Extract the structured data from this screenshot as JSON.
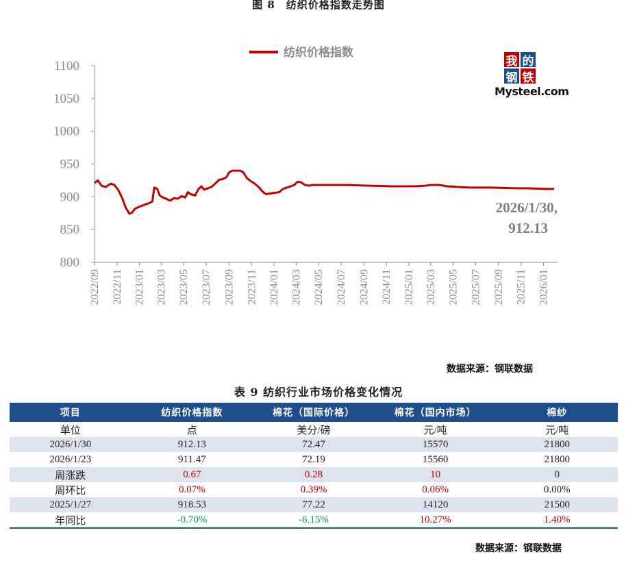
{
  "figure_title": "图 8　纺织价格指数走势图",
  "chart_data": {
    "type": "line",
    "title": "",
    "xlabel": "",
    "ylabel": "",
    "ylim": [
      800,
      1100
    ],
    "y_ticks": [
      "800",
      "850",
      "900",
      "950",
      "1000",
      "1050",
      "1100"
    ],
    "x_ticks": [
      "2022/09",
      "2022/11",
      "2023/01",
      "2023/03",
      "2023/05",
      "2023/07",
      "2023/09",
      "2023/11",
      "2024/01",
      "2024/03",
      "2024/05",
      "2024/07",
      "2024/09",
      "2024/11",
      "2025/01",
      "2025/03",
      "2025/05",
      "2025/07",
      "2025/09",
      "2025/11",
      "2026/01"
    ],
    "legend_position": "top",
    "grid": false,
    "series": [
      {
        "name": "纺织价格指数",
        "color": "#c00000",
        "points": [
          [
            "2022-09-01",
            921
          ],
          [
            "2022-09-10",
            925
          ],
          [
            "2022-09-20",
            917
          ],
          [
            "2022-10-01",
            915
          ],
          [
            "2022-10-15",
            920
          ],
          [
            "2022-10-25",
            918
          ],
          [
            "2022-11-05",
            910
          ],
          [
            "2022-11-15",
            898
          ],
          [
            "2022-11-25",
            883
          ],
          [
            "2022-12-05",
            874
          ],
          [
            "2022-12-12",
            876
          ],
          [
            "2022-12-20",
            882
          ],
          [
            "2023-01-01",
            885
          ],
          [
            "2023-01-10",
            887
          ],
          [
            "2023-01-20",
            889
          ],
          [
            "2023-01-30",
            891
          ],
          [
            "2023-02-05",
            893
          ],
          [
            "2023-02-10",
            914
          ],
          [
            "2023-02-18",
            912
          ],
          [
            "2023-02-25",
            902
          ],
          [
            "2023-03-05",
            899
          ],
          [
            "2023-03-15",
            897
          ],
          [
            "2023-03-25",
            894
          ],
          [
            "2023-04-05",
            898
          ],
          [
            "2023-04-15",
            897
          ],
          [
            "2023-04-25",
            901
          ],
          [
            "2023-05-05",
            899
          ],
          [
            "2023-05-12",
            907
          ],
          [
            "2023-05-20",
            904
          ],
          [
            "2023-06-01",
            902
          ],
          [
            "2023-06-10",
            912
          ],
          [
            "2023-06-18",
            916
          ],
          [
            "2023-06-25",
            911
          ],
          [
            "2023-07-05",
            913
          ],
          [
            "2023-07-15",
            915
          ],
          [
            "2023-07-25",
            920
          ],
          [
            "2023-08-05",
            926
          ],
          [
            "2023-08-15",
            927
          ],
          [
            "2023-08-25",
            930
          ],
          [
            "2023-09-01",
            937
          ],
          [
            "2023-09-10",
            940
          ],
          [
            "2023-09-20",
            940
          ],
          [
            "2023-10-01",
            940
          ],
          [
            "2023-10-10",
            937
          ],
          [
            "2023-10-20",
            928
          ],
          [
            "2023-11-01",
            923
          ],
          [
            "2023-11-10",
            920
          ],
          [
            "2023-11-20",
            915
          ],
          [
            "2023-12-01",
            908
          ],
          [
            "2023-12-10",
            904
          ],
          [
            "2023-12-20",
            905
          ],
          [
            "2024-01-01",
            906
          ],
          [
            "2024-01-15",
            907
          ],
          [
            "2024-01-25",
            912
          ],
          [
            "2024-02-10",
            915
          ],
          [
            "2024-02-25",
            918
          ],
          [
            "2024-03-05",
            923
          ],
          [
            "2024-03-15",
            922
          ],
          [
            "2024-03-25",
            918
          ],
          [
            "2024-04-05",
            917
          ],
          [
            "2024-04-15",
            918
          ],
          [
            "2024-05-15",
            918
          ],
          [
            "2024-06-15",
            918
          ],
          [
            "2024-07-15",
            918
          ],
          [
            "2024-08-15",
            917.5
          ],
          [
            "2024-09-15",
            917
          ],
          [
            "2024-10-15",
            916.5
          ],
          [
            "2024-11-15",
            916
          ],
          [
            "2024-12-15",
            916
          ],
          [
            "2025-01-15",
            916
          ],
          [
            "2025-02-15",
            917
          ],
          [
            "2025-03-01",
            918
          ],
          [
            "2025-03-25",
            918
          ],
          [
            "2025-04-15",
            916
          ],
          [
            "2025-05-15",
            915
          ],
          [
            "2025-06-15",
            914
          ],
          [
            "2025-07-15",
            914
          ],
          [
            "2025-08-15",
            914
          ],
          [
            "2025-09-15",
            913.5
          ],
          [
            "2025-10-15",
            913
          ],
          [
            "2025-11-15",
            913
          ],
          [
            "2025-12-15",
            912.5
          ],
          [
            "2026-01-15",
            912
          ],
          [
            "2026-01-30",
            912.13
          ]
        ]
      }
    ],
    "annotation": {
      "line1": "2026/1/30,",
      "line2": "912.13"
    }
  },
  "logo": {
    "cells": [
      "我",
      "的",
      "钢",
      "铁"
    ],
    "cell_colors": [
      "#c00000",
      "#1f4e8c",
      "#1f4e8c",
      "#c00000"
    ],
    "wordmark": "Mysteel.com"
  },
  "source_top": "数据来源：钢联数据",
  "table": {
    "title": "表 9 纺织行业市场价格变化情况",
    "headers": [
      "项目",
      "纺织价格指数",
      "棉花（国际价格）",
      "棉花（国内市场）",
      "棉纱"
    ],
    "rows": [
      [
        "单位",
        "点",
        "美分/磅",
        "元/吨",
        "元/吨"
      ],
      [
        "2026/1/30",
        "912.13",
        "72.47",
        "15570",
        "21800"
      ],
      [
        "2026/1/23",
        "911.47",
        "72.19",
        "15560",
        "21800"
      ],
      [
        "周涨跌",
        "0.67",
        "0.28",
        "10",
        "0"
      ],
      [
        "周环比",
        "0.07%",
        "0.39%",
        "0.06%",
        "0.00%"
      ],
      [
        "2025/1/27",
        "918.53",
        "77.22",
        "14120",
        "21500"
      ],
      [
        "年同比",
        "-0.70%",
        "-6.15%",
        "10.27%",
        "1.40%"
      ]
    ],
    "value_colors": {
      "3": [
        "",
        "red",
        "red",
        "red",
        ""
      ],
      "4": [
        "",
        "red",
        "red",
        "red",
        ""
      ],
      "6": [
        "",
        "green",
        "green",
        "red",
        "red"
      ]
    }
  },
  "source_bottom": "数据来源：钢联数据"
}
